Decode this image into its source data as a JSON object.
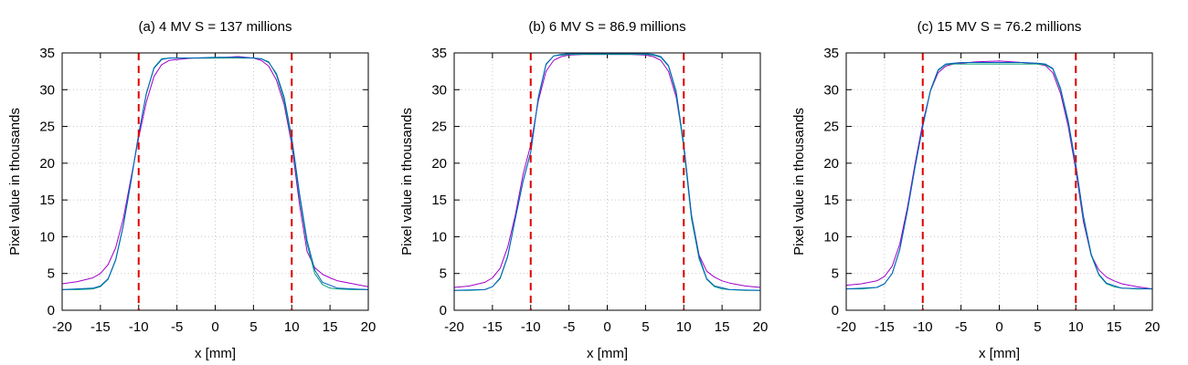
{
  "chart_data": [
    {
      "type": "line",
      "title": "(a) 4 MV S = 137 millions",
      "xlabel": "x [mm]",
      "ylabel": "Pixel value in thousands",
      "xlim": [
        -20,
        20
      ],
      "ylim": [
        0,
        35
      ],
      "xticks": [
        -20,
        -15,
        -10,
        -5,
        0,
        5,
        10,
        15,
        20
      ],
      "yticks": [
        0,
        5,
        10,
        15,
        20,
        25,
        30,
        35
      ],
      "grid": true,
      "vlines": [
        -10,
        10
      ],
      "vline_color": "#e00000",
      "series": [
        {
          "color": "#a000c8",
          "x": [
            -20,
            -18,
            -16,
            -15,
            -14,
            -13,
            -12,
            -11,
            -10,
            -9,
            -8,
            -7,
            -6,
            -5,
            -3,
            0,
            3,
            5,
            6,
            7,
            8,
            9,
            10,
            11,
            12,
            13,
            14,
            15,
            16,
            18,
            20
          ],
          "y": [
            3.6,
            3.9,
            4.4,
            5.0,
            6.2,
            8.5,
            12.5,
            18.0,
            23.5,
            28.3,
            31.8,
            33.4,
            34.0,
            34.1,
            34.3,
            34.3,
            34.5,
            34.3,
            34.0,
            33.2,
            31.3,
            28.0,
            22.5,
            14.5,
            8.0,
            5.8,
            4.9,
            4.4,
            4.0,
            3.6,
            3.2
          ]
        },
        {
          "color": "#009e73",
          "x": [
            -20,
            -18,
            -16,
            -15,
            -14,
            -13,
            -12,
            -11,
            -10,
            -9,
            -8,
            -7,
            -6,
            -5,
            -3,
            0,
            3,
            5,
            6,
            7,
            8,
            9,
            10,
            11,
            12,
            13,
            14,
            15,
            16,
            18,
            20
          ],
          "y": [
            2.8,
            2.8,
            2.9,
            3.2,
            4.2,
            6.8,
            11.5,
            17.5,
            24.0,
            29.5,
            33.0,
            34.2,
            34.3,
            34.3,
            34.3,
            34.3,
            34.3,
            34.3,
            34.2,
            33.8,
            32.0,
            28.5,
            23.0,
            15.5,
            9.0,
            5.0,
            3.5,
            3.0,
            2.9,
            2.8,
            2.8
          ]
        },
        {
          "color": "#0060c0",
          "x": [
            -20,
            -16,
            -15,
            -14,
            -13,
            -12,
            -11,
            -10,
            -9,
            -8,
            -7,
            -6,
            -5,
            -3,
            0,
            3,
            5,
            6,
            7,
            8,
            9,
            10,
            11,
            12,
            13,
            14,
            16,
            20
          ],
          "y": [
            2.8,
            3.0,
            3.3,
            4.3,
            6.9,
            11.6,
            17.6,
            24.0,
            29.4,
            32.9,
            34.1,
            34.3,
            34.3,
            34.3,
            34.4,
            34.4,
            34.3,
            34.2,
            33.7,
            32.2,
            29.0,
            23.5,
            16.0,
            9.5,
            5.5,
            3.8,
            3.0,
            2.8
          ]
        }
      ]
    },
    {
      "type": "line",
      "title": "(b) 6 MV S = 86.9 millions",
      "xlabel": "x [mm]",
      "ylabel": "Pixel value in thousands",
      "xlim": [
        -20,
        20
      ],
      "ylim": [
        0,
        35
      ],
      "xticks": [
        -20,
        -15,
        -10,
        -5,
        0,
        5,
        10,
        15,
        20
      ],
      "yticks": [
        0,
        5,
        10,
        15,
        20,
        25,
        30,
        35
      ],
      "grid": true,
      "vlines": [
        -10,
        10
      ],
      "vline_color": "#e00000",
      "series": [
        {
          "color": "#a000c8",
          "x": [
            -20,
            -18,
            -16,
            -15,
            -14,
            -13,
            -12,
            -11,
            -10,
            -9,
            -8,
            -7,
            -6,
            -5,
            -3,
            0,
            3,
            5,
            6,
            7,
            8,
            9,
            10,
            11,
            12,
            13,
            14,
            15,
            16,
            18,
            20
          ],
          "y": [
            3.1,
            3.3,
            3.8,
            4.4,
            5.7,
            8.6,
            13.0,
            18.5,
            22.5,
            28.5,
            32.5,
            34.0,
            34.5,
            34.7,
            34.8,
            34.8,
            34.8,
            34.7,
            34.5,
            34.0,
            32.5,
            29.0,
            22.5,
            13.0,
            7.5,
            5.3,
            4.5,
            4.0,
            3.7,
            3.3,
            3.1
          ]
        },
        {
          "color": "#009e73",
          "x": [
            -20,
            -18,
            -16,
            -15,
            -14,
            -13,
            -12,
            -11,
            -10,
            -9,
            -8,
            -7,
            -6,
            -5,
            -3,
            0,
            3,
            5,
            6,
            7,
            8,
            9,
            10,
            11,
            12,
            13,
            14,
            15,
            16,
            18,
            20
          ],
          "y": [
            2.7,
            2.7,
            2.8,
            3.2,
            4.3,
            7.3,
            12.5,
            17.5,
            21.5,
            29.0,
            33.5,
            34.6,
            34.7,
            34.8,
            34.8,
            34.8,
            34.8,
            34.8,
            34.7,
            34.4,
            33.2,
            29.5,
            22.0,
            12.5,
            7.0,
            4.2,
            3.2,
            2.9,
            2.8,
            2.7,
            2.7
          ]
        },
        {
          "color": "#0060c0",
          "x": [
            -20,
            -16,
            -15,
            -14,
            -13,
            -12,
            -11,
            -10,
            -9,
            -8,
            -7,
            -6,
            -5,
            -3,
            0,
            3,
            5,
            6,
            7,
            8,
            9,
            10,
            11,
            12,
            13,
            14,
            16,
            20
          ],
          "y": [
            2.7,
            2.8,
            3.2,
            4.4,
            7.4,
            12.6,
            17.6,
            21.5,
            28.9,
            33.4,
            34.6,
            34.8,
            34.9,
            34.9,
            34.9,
            34.9,
            34.9,
            34.8,
            34.5,
            33.3,
            29.8,
            22.5,
            13.0,
            7.3,
            4.3,
            3.3,
            2.8,
            2.7
          ]
        }
      ]
    },
    {
      "type": "line",
      "title": "(c) 15 MV S = 76.2 millions",
      "xlabel": "x [mm]",
      "ylabel": "Pixel value in thousands",
      "xlim": [
        -20,
        20
      ],
      "ylim": [
        0,
        35
      ],
      "xticks": [
        -20,
        -15,
        -10,
        -5,
        0,
        5,
        10,
        15,
        20
      ],
      "yticks": [
        0,
        5,
        10,
        15,
        20,
        25,
        30,
        35
      ],
      "grid": true,
      "vlines": [
        -10,
        10
      ],
      "vline_color": "#e00000",
      "series": [
        {
          "color": "#a000c8",
          "x": [
            -20,
            -18,
            -16,
            -15,
            -14,
            -13,
            -12,
            -11,
            -10,
            -9,
            -8,
            -7,
            -6,
            -5,
            -3,
            0,
            3,
            5,
            6,
            7,
            8,
            9,
            10,
            11,
            12,
            13,
            14,
            15,
            16,
            18,
            20
          ],
          "y": [
            3.4,
            3.6,
            4.0,
            4.6,
            6.0,
            9.0,
            14.0,
            20.0,
            25.5,
            29.8,
            32.3,
            33.2,
            33.5,
            33.6,
            33.8,
            33.9,
            33.7,
            33.5,
            33.3,
            32.3,
            29.5,
            25.0,
            19.0,
            12.0,
            7.5,
            5.5,
            4.5,
            4.0,
            3.6,
            3.2,
            2.9
          ]
        },
        {
          "color": "#009e73",
          "x": [
            -20,
            -18,
            -16,
            -15,
            -14,
            -13,
            -12,
            -11,
            -10,
            -9,
            -8,
            -7,
            -6,
            -5,
            -3,
            0,
            3,
            5,
            6,
            7,
            8,
            9,
            10,
            11,
            12,
            13,
            14,
            15,
            16,
            18,
            20
          ],
          "y": [
            2.9,
            2.9,
            3.1,
            3.6,
            5.0,
            8.2,
            13.5,
            19.5,
            25.0,
            29.8,
            32.6,
            33.4,
            33.5,
            33.5,
            33.5,
            33.5,
            33.5,
            33.5,
            33.4,
            32.8,
            30.0,
            25.5,
            19.5,
            12.5,
            7.5,
            4.8,
            3.6,
            3.2,
            3.0,
            2.9,
            2.9
          ]
        },
        {
          "color": "#0060c0",
          "x": [
            -20,
            -16,
            -15,
            -14,
            -13,
            -12,
            -11,
            -10,
            -9,
            -8,
            -7,
            -6,
            -5,
            -3,
            0,
            3,
            5,
            6,
            7,
            8,
            9,
            10,
            11,
            12,
            13,
            14,
            16,
            20
          ],
          "y": [
            2.9,
            3.1,
            3.6,
            5.0,
            8.3,
            13.6,
            19.6,
            25.1,
            29.9,
            32.7,
            33.5,
            33.6,
            33.7,
            33.7,
            33.7,
            33.7,
            33.6,
            33.5,
            32.9,
            30.2,
            25.8,
            19.8,
            12.8,
            7.7,
            4.9,
            3.7,
            3.0,
            2.9
          ]
        }
      ]
    }
  ]
}
